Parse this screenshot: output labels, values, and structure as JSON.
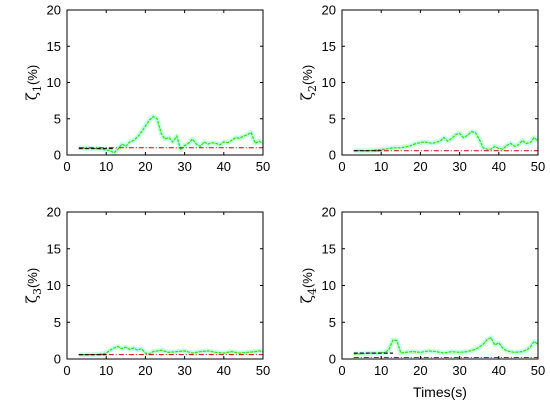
{
  "chart_data": [
    {
      "type": "line",
      "ylabel_sym": "ζ",
      "ylabel_sub": "1",
      "ylabel_unit": "(%)",
      "xlabel": "",
      "xlim": [
        0,
        50
      ],
      "ylim": [
        0,
        20
      ],
      "xticks": [
        0,
        10,
        20,
        30,
        40,
        50
      ],
      "yticks": [
        0,
        5,
        10,
        15,
        20
      ],
      "grid": false,
      "series": [
        {
          "style": "shade",
          "color": "#7fffd4",
          "x": [
            3,
            5,
            7,
            9,
            11,
            12,
            13,
            14,
            15,
            16,
            17,
            18,
            19,
            20,
            21,
            22,
            23,
            24,
            25,
            26,
            27,
            28,
            29,
            30,
            31,
            32,
            33,
            34,
            35,
            36,
            37,
            38,
            39,
            40,
            41,
            42,
            43,
            44,
            45,
            46,
            47,
            48,
            49,
            50
          ],
          "y": [
            1.0,
            0.9,
            0.9,
            0.8,
            0.6,
            0.3,
            0.8,
            1.5,
            1.2,
            1.8,
            2.0,
            2.5,
            3.2,
            4.0,
            4.8,
            5.3,
            5.0,
            3.0,
            2.2,
            2.4,
            1.8,
            2.6,
            0.7,
            1.3,
            1.6,
            2.2,
            1.5,
            1.2,
            1.8,
            1.5,
            1.7,
            1.6,
            1.4,
            1.8,
            1.7,
            2.0,
            2.4,
            2.3,
            2.6,
            2.8,
            3.1,
            1.6,
            1.9,
            1.6
          ]
        },
        {
          "style": "solid",
          "color": "#33dd00",
          "x": [
            3,
            5,
            7,
            9,
            11,
            12,
            13,
            14,
            15,
            16,
            17,
            18,
            19,
            20,
            21,
            22,
            23,
            24,
            25,
            26,
            27,
            28,
            29,
            30,
            31,
            32,
            33,
            34,
            35,
            36,
            37,
            38,
            39,
            40,
            41,
            42,
            43,
            44,
            45,
            46,
            47,
            48,
            49,
            50
          ],
          "y": [
            1.0,
            0.9,
            0.9,
            0.8,
            0.6,
            0.3,
            0.8,
            1.5,
            1.2,
            1.8,
            2.0,
            2.5,
            3.2,
            4.0,
            4.8,
            5.3,
            5.0,
            3.0,
            2.2,
            2.4,
            1.8,
            2.6,
            0.7,
            1.3,
            1.6,
            2.2,
            1.5,
            1.2,
            1.8,
            1.5,
            1.7,
            1.6,
            1.4,
            1.8,
            1.7,
            2.0,
            2.4,
            2.3,
            2.6,
            2.8,
            3.1,
            1.6,
            1.9,
            1.6
          ]
        },
        {
          "style": "dashdot",
          "color": "#cc0000",
          "x": [
            3,
            50
          ],
          "y": [
            1.0,
            1.0
          ]
        },
        {
          "style": "dashed",
          "color": "#111111",
          "x": [
            3,
            12
          ],
          "y": [
            0.9,
            0.9
          ]
        }
      ]
    },
    {
      "type": "line",
      "ylabel_sym": "ζ",
      "ylabel_sub": "2",
      "ylabel_unit": "(%)",
      "xlabel": "",
      "xlim": [
        0,
        50
      ],
      "ylim": [
        0,
        20
      ],
      "xticks": [
        0,
        10,
        20,
        30,
        40,
        50
      ],
      "yticks": [
        0,
        5,
        10,
        15,
        20
      ],
      "grid": false,
      "series": [
        {
          "style": "shade",
          "color": "#7fffd4",
          "x": [
            3,
            5,
            7,
            9,
            11,
            13,
            15,
            17,
            19,
            21,
            23,
            25,
            26,
            27,
            28,
            29,
            30,
            31,
            32,
            33,
            34,
            35,
            36,
            37,
            38,
            39,
            40,
            41,
            42,
            43,
            44,
            45,
            46,
            47,
            48,
            49,
            50
          ],
          "y": [
            0.6,
            0.6,
            0.6,
            0.7,
            0.8,
            1.0,
            1.0,
            1.2,
            1.6,
            1.8,
            1.6,
            1.9,
            2.4,
            1.9,
            2.3,
            2.8,
            3.0,
            2.4,
            2.7,
            3.2,
            3.1,
            2.2,
            1.0,
            0.8,
            0.8,
            1.2,
            0.9,
            0.8,
            1.3,
            1.6,
            1.2,
            1.4,
            2.0,
            1.6,
            1.7,
            2.4,
            1.9
          ]
        },
        {
          "style": "solid",
          "color": "#33dd00",
          "x": [
            3,
            5,
            7,
            9,
            11,
            13,
            15,
            17,
            19,
            21,
            23,
            25,
            26,
            27,
            28,
            29,
            30,
            31,
            32,
            33,
            34,
            35,
            36,
            37,
            38,
            39,
            40,
            41,
            42,
            43,
            44,
            45,
            46,
            47,
            48,
            49,
            50
          ],
          "y": [
            0.6,
            0.6,
            0.6,
            0.7,
            0.8,
            1.0,
            1.0,
            1.2,
            1.6,
            1.8,
            1.6,
            1.9,
            2.4,
            1.9,
            2.3,
            2.8,
            3.0,
            2.4,
            2.7,
            3.2,
            3.1,
            2.2,
            1.0,
            0.8,
            0.8,
            1.2,
            0.9,
            0.8,
            1.3,
            1.6,
            1.2,
            1.4,
            2.0,
            1.6,
            1.7,
            2.4,
            1.9
          ]
        },
        {
          "style": "dashdot",
          "color": "#cc0000",
          "x": [
            3,
            50
          ],
          "y": [
            0.6,
            0.6
          ]
        },
        {
          "style": "dashed",
          "color": "#111111",
          "x": [
            3,
            10
          ],
          "y": [
            0.6,
            0.6
          ]
        }
      ]
    },
    {
      "type": "line",
      "ylabel_sym": "ζ",
      "ylabel_sub": "3",
      "ylabel_unit": "(%)",
      "xlabel": "",
      "xlim": [
        0,
        50
      ],
      "ylim": [
        0,
        20
      ],
      "xticks": [
        0,
        10,
        20,
        30,
        40,
        50
      ],
      "yticks": [
        0,
        5,
        10,
        15,
        20
      ],
      "grid": false,
      "series": [
        {
          "style": "shade",
          "color": "#7fffd4",
          "x": [
            3,
            5,
            7,
            9,
            10,
            11,
            12,
            13,
            14,
            15,
            16,
            17,
            18,
            19,
            20,
            21,
            22,
            24,
            26,
            28,
            30,
            32,
            34,
            36,
            38,
            40,
            42,
            44,
            46,
            48,
            49,
            50
          ],
          "y": [
            0.6,
            0.6,
            0.6,
            0.7,
            0.8,
            1.2,
            1.5,
            1.7,
            1.4,
            1.6,
            1.3,
            1.5,
            1.2,
            1.4,
            0.8,
            0.7,
            1.0,
            1.2,
            0.9,
            1.0,
            1.1,
            0.8,
            1.0,
            1.1,
            0.9,
            0.8,
            1.0,
            0.8,
            0.9,
            1.0,
            1.1,
            1.0
          ]
        },
        {
          "style": "solid",
          "color": "#33dd00",
          "x": [
            3,
            5,
            7,
            9,
            10,
            11,
            12,
            13,
            14,
            15,
            16,
            17,
            18,
            19,
            20,
            21,
            22,
            24,
            26,
            28,
            30,
            32,
            34,
            36,
            38,
            40,
            42,
            44,
            46,
            48,
            49,
            50
          ],
          "y": [
            0.6,
            0.6,
            0.6,
            0.7,
            0.8,
            1.2,
            1.5,
            1.7,
            1.4,
            1.6,
            1.3,
            1.5,
            1.2,
            1.4,
            0.8,
            0.7,
            1.0,
            1.2,
            0.9,
            1.0,
            1.1,
            0.8,
            1.0,
            1.1,
            0.9,
            0.8,
            1.0,
            0.8,
            0.9,
            1.0,
            1.1,
            1.0
          ]
        },
        {
          "style": "dashdot",
          "color": "#cc0000",
          "x": [
            3,
            50
          ],
          "y": [
            0.6,
            0.6
          ]
        },
        {
          "style": "dashed",
          "color": "#111111",
          "x": [
            3,
            10
          ],
          "y": [
            0.6,
            0.6
          ]
        }
      ]
    },
    {
      "type": "line",
      "ylabel_sym": "ζ",
      "ylabel_sub": "4",
      "ylabel_unit": "(%)",
      "xlabel": "Times(s)",
      "xlim": [
        0,
        50
      ],
      "ylim": [
        0,
        20
      ],
      "xticks": [
        0,
        10,
        20,
        30,
        40,
        50
      ],
      "yticks": [
        0,
        5,
        10,
        15,
        20
      ],
      "grid": false,
      "series": [
        {
          "style": "shade",
          "color": "#7fffd4",
          "x": [
            3,
            5,
            7,
            9,
            11,
            12,
            13,
            14,
            15,
            16,
            18,
            20,
            22,
            24,
            26,
            28,
            30,
            32,
            34,
            35,
            36,
            37,
            38,
            39,
            40,
            41,
            42,
            44,
            46,
            47,
            48,
            49,
            50
          ],
          "y": [
            0.7,
            0.7,
            0.8,
            0.8,
            0.9,
            1.3,
            2.6,
            2.5,
            0.8,
            0.9,
            1.0,
            0.9,
            1.1,
            1.0,
            0.8,
            1.0,
            0.9,
            1.0,
            1.3,
            1.6,
            2.0,
            2.6,
            2.9,
            1.9,
            2.2,
            1.5,
            1.1,
            0.9,
            1.0,
            1.2,
            1.6,
            2.4,
            2.0
          ]
        },
        {
          "style": "solid",
          "color": "#33dd00",
          "x": [
            3,
            5,
            7,
            9,
            11,
            12,
            13,
            14,
            15,
            16,
            18,
            20,
            22,
            24,
            26,
            28,
            30,
            32,
            34,
            35,
            36,
            37,
            38,
            39,
            40,
            41,
            42,
            44,
            46,
            47,
            48,
            49,
            50
          ],
          "y": [
            0.7,
            0.7,
            0.8,
            0.8,
            0.9,
            1.3,
            2.6,
            2.5,
            0.8,
            0.9,
            1.0,
            0.9,
            1.1,
            1.0,
            0.8,
            1.0,
            0.9,
            1.0,
            1.3,
            1.6,
            2.0,
            2.6,
            2.9,
            1.9,
            2.2,
            1.5,
            1.1,
            0.9,
            1.0,
            1.2,
            1.6,
            2.4,
            2.0
          ]
        },
        {
          "style": "dashdot",
          "color": "#cc0000",
          "x": [
            3,
            50
          ],
          "y": [
            0.2,
            0.2
          ]
        },
        {
          "style": "dashed",
          "color": "#111111",
          "x": [
            3,
            13
          ],
          "y": [
            0.8,
            0.8
          ]
        }
      ]
    }
  ]
}
